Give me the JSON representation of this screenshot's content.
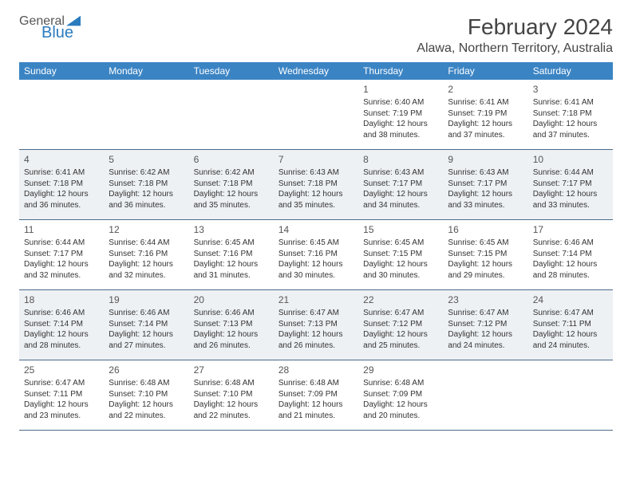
{
  "branding": {
    "word1": "General",
    "word2": "Blue",
    "word1_color": "#555555",
    "word2_color": "#2b7bbf",
    "icon_color": "#2b7bbf"
  },
  "header": {
    "month_title": "February 2024",
    "location": "Alawa, Northern Territory, Australia"
  },
  "layout": {
    "header_bg": "#3b84c4",
    "header_text": "#ffffff",
    "shaded_bg": "#eef1f4",
    "border_color": "#4b6a8a",
    "cell_font_size": 10,
    "daynum_font_size": 12,
    "title_font_size": 28,
    "location_font_size": 16,
    "columns": 7,
    "rows": 5
  },
  "day_headers": [
    "Sunday",
    "Monday",
    "Tuesday",
    "Wednesday",
    "Thursday",
    "Friday",
    "Saturday"
  ],
  "leading_blanks": 4,
  "days": [
    {
      "n": "1",
      "sunrise": "6:40 AM",
      "sunset": "7:19 PM",
      "daylight": "12 hours and 38 minutes."
    },
    {
      "n": "2",
      "sunrise": "6:41 AM",
      "sunset": "7:19 PM",
      "daylight": "12 hours and 37 minutes."
    },
    {
      "n": "3",
      "sunrise": "6:41 AM",
      "sunset": "7:18 PM",
      "daylight": "12 hours and 37 minutes."
    },
    {
      "n": "4",
      "sunrise": "6:41 AM",
      "sunset": "7:18 PM",
      "daylight": "12 hours and 36 minutes."
    },
    {
      "n": "5",
      "sunrise": "6:42 AM",
      "sunset": "7:18 PM",
      "daylight": "12 hours and 36 minutes."
    },
    {
      "n": "6",
      "sunrise": "6:42 AM",
      "sunset": "7:18 PM",
      "daylight": "12 hours and 35 minutes."
    },
    {
      "n": "7",
      "sunrise": "6:43 AM",
      "sunset": "7:18 PM",
      "daylight": "12 hours and 35 minutes."
    },
    {
      "n": "8",
      "sunrise": "6:43 AM",
      "sunset": "7:17 PM",
      "daylight": "12 hours and 34 minutes."
    },
    {
      "n": "9",
      "sunrise": "6:43 AM",
      "sunset": "7:17 PM",
      "daylight": "12 hours and 33 minutes."
    },
    {
      "n": "10",
      "sunrise": "6:44 AM",
      "sunset": "7:17 PM",
      "daylight": "12 hours and 33 minutes."
    },
    {
      "n": "11",
      "sunrise": "6:44 AM",
      "sunset": "7:17 PM",
      "daylight": "12 hours and 32 minutes."
    },
    {
      "n": "12",
      "sunrise": "6:44 AM",
      "sunset": "7:16 PM",
      "daylight": "12 hours and 32 minutes."
    },
    {
      "n": "13",
      "sunrise": "6:45 AM",
      "sunset": "7:16 PM",
      "daylight": "12 hours and 31 minutes."
    },
    {
      "n": "14",
      "sunrise": "6:45 AM",
      "sunset": "7:16 PM",
      "daylight": "12 hours and 30 minutes."
    },
    {
      "n": "15",
      "sunrise": "6:45 AM",
      "sunset": "7:15 PM",
      "daylight": "12 hours and 30 minutes."
    },
    {
      "n": "16",
      "sunrise": "6:45 AM",
      "sunset": "7:15 PM",
      "daylight": "12 hours and 29 minutes."
    },
    {
      "n": "17",
      "sunrise": "6:46 AM",
      "sunset": "7:14 PM",
      "daylight": "12 hours and 28 minutes."
    },
    {
      "n": "18",
      "sunrise": "6:46 AM",
      "sunset": "7:14 PM",
      "daylight": "12 hours and 28 minutes."
    },
    {
      "n": "19",
      "sunrise": "6:46 AM",
      "sunset": "7:14 PM",
      "daylight": "12 hours and 27 minutes."
    },
    {
      "n": "20",
      "sunrise": "6:46 AM",
      "sunset": "7:13 PM",
      "daylight": "12 hours and 26 minutes."
    },
    {
      "n": "21",
      "sunrise": "6:47 AM",
      "sunset": "7:13 PM",
      "daylight": "12 hours and 26 minutes."
    },
    {
      "n": "22",
      "sunrise": "6:47 AM",
      "sunset": "7:12 PM",
      "daylight": "12 hours and 25 minutes."
    },
    {
      "n": "23",
      "sunrise": "6:47 AM",
      "sunset": "7:12 PM",
      "daylight": "12 hours and 24 minutes."
    },
    {
      "n": "24",
      "sunrise": "6:47 AM",
      "sunset": "7:11 PM",
      "daylight": "12 hours and 24 minutes."
    },
    {
      "n": "25",
      "sunrise": "6:47 AM",
      "sunset": "7:11 PM",
      "daylight": "12 hours and 23 minutes."
    },
    {
      "n": "26",
      "sunrise": "6:48 AM",
      "sunset": "7:10 PM",
      "daylight": "12 hours and 22 minutes."
    },
    {
      "n": "27",
      "sunrise": "6:48 AM",
      "sunset": "7:10 PM",
      "daylight": "12 hours and 22 minutes."
    },
    {
      "n": "28",
      "sunrise": "6:48 AM",
      "sunset": "7:09 PM",
      "daylight": "12 hours and 21 minutes."
    },
    {
      "n": "29",
      "sunrise": "6:48 AM",
      "sunset": "7:09 PM",
      "daylight": "12 hours and 20 minutes."
    }
  ],
  "labels": {
    "sunrise_prefix": "Sunrise: ",
    "sunset_prefix": "Sunset: ",
    "daylight_prefix": "Daylight: "
  }
}
